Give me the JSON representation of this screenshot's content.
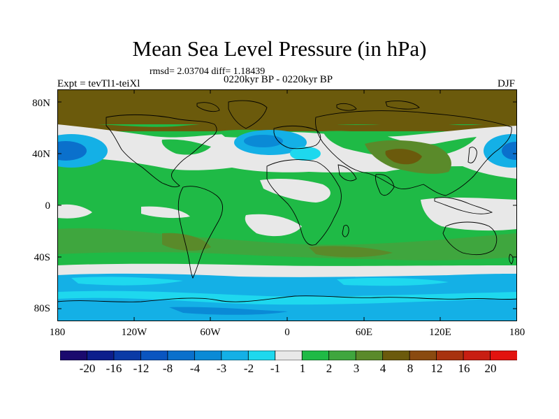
{
  "title": "Mean Sea Level Pressure (in hPa)",
  "stats": "rmsd= 2.03704 diff= 1.18439",
  "period": "0220kyr BP - 0220kyr BP",
  "experiment": "Expt = tevTl1-teiXl",
  "season": "DJF",
  "lat_labels": [
    "80N",
    "40N",
    "0",
    "40S",
    "80S"
  ],
  "lon_labels": [
    "180",
    "120W",
    "60W",
    "0",
    "60E",
    "120E",
    "180"
  ],
  "colorbar": {
    "labels": [
      "-20",
      "-16",
      "-12",
      "-8",
      "-4",
      "-3",
      "-2",
      "-1",
      "1",
      "2",
      "3",
      "4",
      "8",
      "12",
      "16",
      "20"
    ],
    "colors": [
      "#1a0a6e",
      "#0c1e8c",
      "#0a3aa6",
      "#0a55c0",
      "#0a70cc",
      "#0a8ad6",
      "#14b0e6",
      "#1ed8ee",
      "#e8e8e8",
      "#1fba46",
      "#3fa63e",
      "#5a8a2a",
      "#6b5a0c",
      "#8a4a10",
      "#a8320f",
      "#c81e12",
      "#e2130f"
    ]
  }
}
